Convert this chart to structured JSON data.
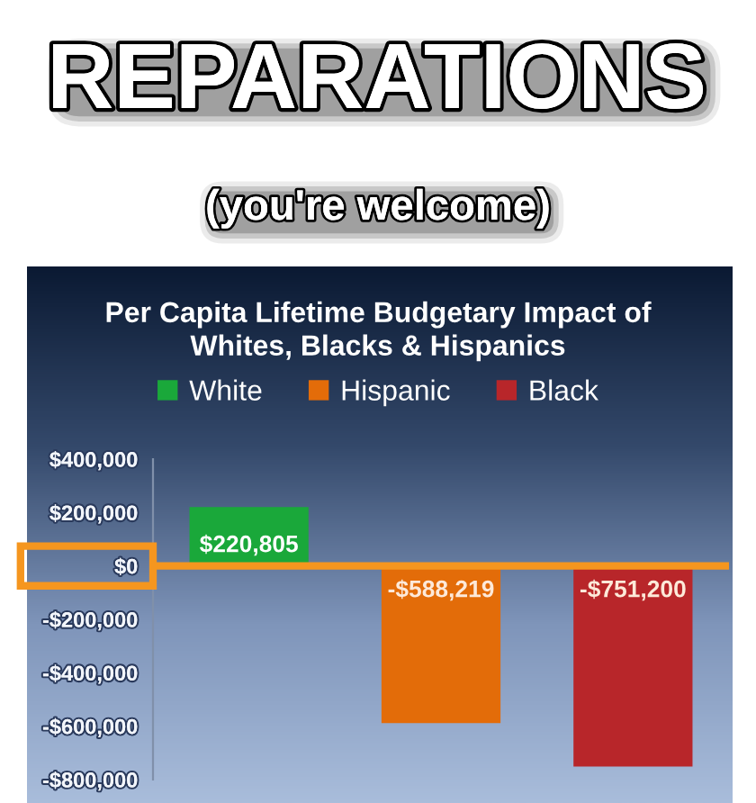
{
  "chart_data": {
    "type": "bar",
    "title": "Per Capita Lifetime Budgetary Impact of\nWhites, Blacks & Hispanics",
    "annotations": [
      "REPARATIONS",
      "(you're welcome)"
    ],
    "categories": [
      null
    ],
    "series": [
      {
        "name": "White",
        "color": "#1aa83a",
        "values": [
          220805
        ],
        "value_labels": [
          "$220,805"
        ]
      },
      {
        "name": "Hispanic",
        "color": "#e36c09",
        "values": [
          -588219
        ],
        "value_labels": [
          "-$588,219"
        ]
      },
      {
        "name": "Black",
        "color": "#b8262a",
        "values": [
          -751200
        ],
        "value_labels": [
          "-$751,200"
        ]
      }
    ],
    "ylim": [
      -800000,
      400000
    ],
    "yticks": [
      {
        "value": 400000,
        "label": "$400,000"
      },
      {
        "value": 200000,
        "label": "$200,000"
      },
      {
        "value": 0,
        "label": "$0"
      },
      {
        "value": -200000,
        "label": "-$200,000"
      },
      {
        "value": -400000,
        "label": "-$400,000"
      },
      {
        "value": -600000,
        "label": "-$600,000"
      },
      {
        "value": -800000,
        "label": "-$800,000"
      }
    ],
    "ref_lines": [
      {
        "axis": "y",
        "value": 0,
        "color": "#f5961f"
      }
    ],
    "legend": "top",
    "grid": false
  }
}
